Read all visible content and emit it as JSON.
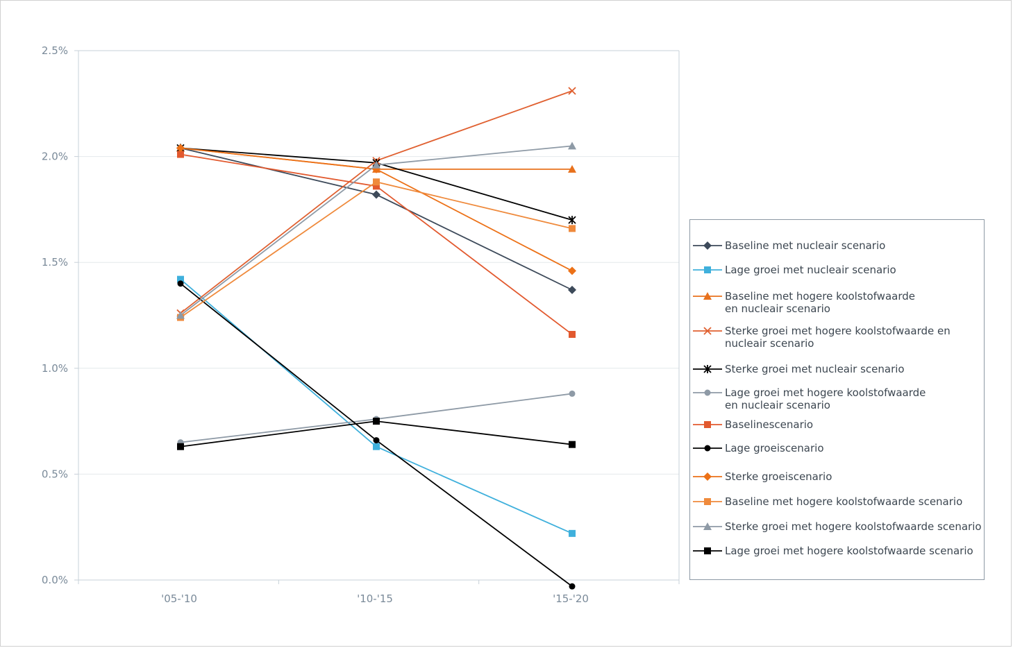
{
  "chart_data": {
    "type": "line",
    "title": "",
    "xlabel": "",
    "ylabel": "",
    "categories": [
      "'05-'10",
      "'10-'15",
      "'15-'20"
    ],
    "ylim": [
      0,
      2.5
    ],
    "yticks": [
      "0.0%",
      "0.5%",
      "1.0%",
      "1.5%",
      "2.0%",
      "2.5%"
    ],
    "ytick_values": [
      0,
      0.5,
      1.0,
      1.5,
      2.0,
      2.5
    ],
    "grid": true,
    "legend_position": "right",
    "series": [
      {
        "name": "Baseline met nucleair scenario",
        "values": [
          2.04,
          1.82,
          1.37
        ],
        "color": "#3d4a5a",
        "marker": "diamond"
      },
      {
        "name": "Lage groei met nucleair scenario",
        "values": [
          1.42,
          0.63,
          0.22
        ],
        "color": "#3fb0dc",
        "marker": "square"
      },
      {
        "name": "Baseline met hogere koolstofwaarde en nucleair scenario",
        "values": [
          2.04,
          1.94,
          1.94
        ],
        "color": "#e8711c",
        "marker": "triangle"
      },
      {
        "name": "Sterke groei met hogere koolstofwaarde en nucleair scenario",
        "values": [
          1.26,
          1.98,
          2.31
        ],
        "color": "#e06030",
        "marker": "x"
      },
      {
        "name": "Sterke groei met nucleair scenario",
        "values": [
          2.04,
          1.97,
          1.7
        ],
        "color": "#000000",
        "marker": "star"
      },
      {
        "name": "Lage groei met hogere koolstofwaarde en nucleair scenario",
        "values": [
          0.65,
          0.76,
          0.88
        ],
        "color": "#8e9aa6",
        "marker": "circle"
      },
      {
        "name": "Baselinescenario",
        "values": [
          2.01,
          1.86,
          1.16
        ],
        "color": "#e2592e",
        "marker": "square"
      },
      {
        "name": "Lage groeiscenario",
        "values": [
          1.4,
          0.66,
          -0.03
        ],
        "color": "#000000",
        "marker": "circle"
      },
      {
        "name": "Sterke groeiscenario",
        "values": [
          2.04,
          1.94,
          1.46
        ],
        "color": "#ec7117",
        "marker": "diamond"
      },
      {
        "name": "Baseline met hogere koolstofwaarde scenario",
        "values": [
          1.24,
          1.88,
          1.66
        ],
        "color": "#ef8a3c",
        "marker": "square"
      },
      {
        "name": "Sterke groei met hogere koolstofwaarde scenario",
        "values": [
          1.25,
          1.96,
          2.05
        ],
        "color": "#8e9aa6",
        "marker": "triangle"
      },
      {
        "name": "Lage groei met hogere koolstofwaarde scenario",
        "values": [
          0.63,
          0.75,
          0.64
        ],
        "color": "#000000",
        "marker": "square"
      }
    ]
  }
}
